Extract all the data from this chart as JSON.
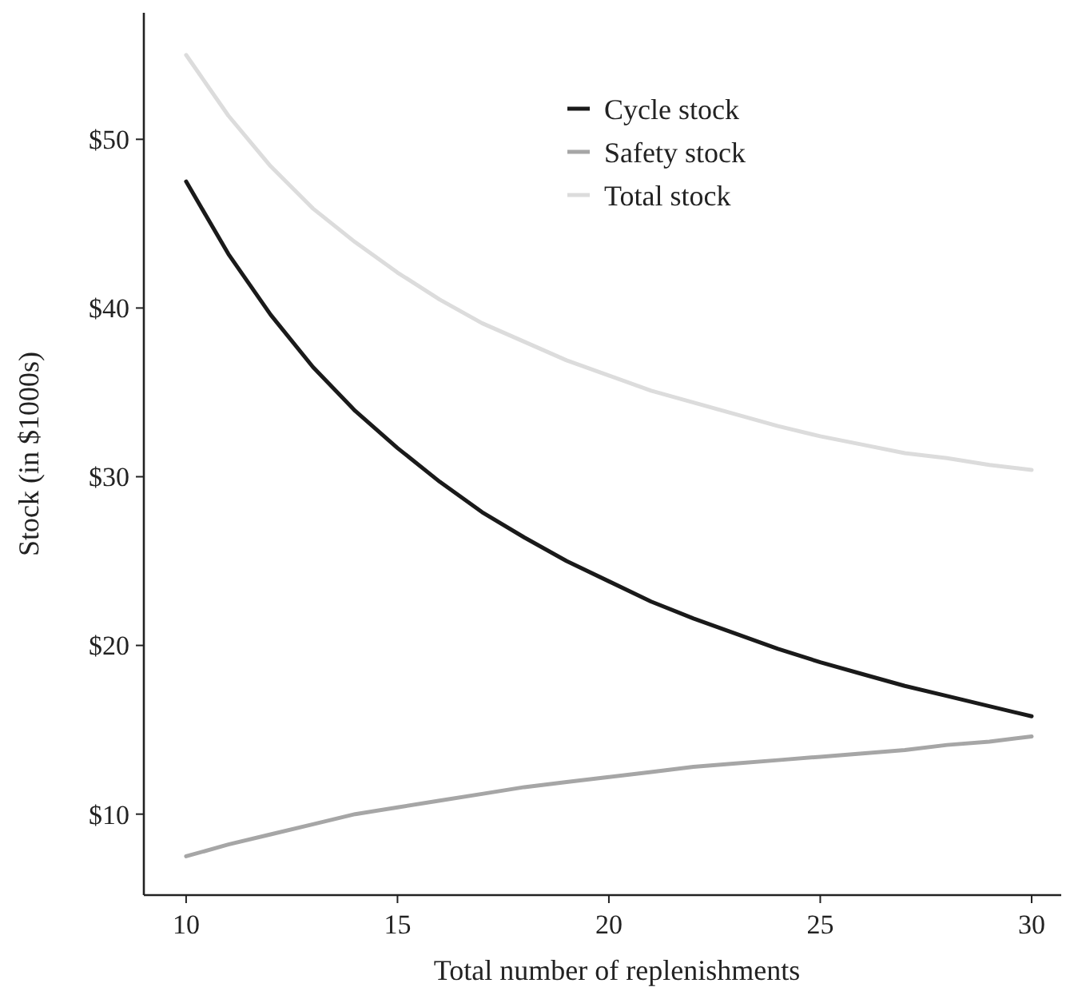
{
  "chart_data": {
    "type": "line",
    "xlabel": "Total number of replenishments",
    "ylabel": "Stock (in $1000s)",
    "x": [
      10,
      11,
      12,
      13,
      14,
      15,
      16,
      17,
      18,
      19,
      20,
      21,
      22,
      23,
      24,
      25,
      26,
      27,
      28,
      29,
      30
    ],
    "series": [
      {
        "name": "Cycle stock",
        "color": "#1a1a1a",
        "values": [
          47.5,
          43.2,
          39.6,
          36.5,
          33.9,
          31.7,
          29.7,
          27.9,
          26.4,
          25.0,
          23.8,
          22.6,
          21.6,
          20.7,
          19.8,
          19.0,
          18.3,
          17.6,
          17.0,
          16.4,
          15.8
        ]
      },
      {
        "name": "Safety stock",
        "color": "#a6a6a6",
        "values": [
          7.5,
          8.2,
          8.8,
          9.4,
          10.0,
          10.4,
          10.8,
          11.2,
          11.6,
          11.9,
          12.2,
          12.5,
          12.8,
          13.0,
          13.2,
          13.4,
          13.6,
          13.8,
          14.1,
          14.3,
          14.6
        ]
      },
      {
        "name": "Total stock",
        "color": "#dcdcdc",
        "values": [
          55.0,
          51.4,
          48.4,
          45.9,
          43.9,
          42.1,
          40.5,
          39.1,
          38.0,
          36.9,
          36.0,
          35.1,
          34.4,
          33.7,
          33.0,
          32.4,
          31.9,
          31.4,
          31.1,
          30.7,
          30.4
        ]
      }
    ],
    "xlim": [
      9,
      30.7
    ],
    "xticks": [
      10,
      15,
      20,
      25,
      30
    ],
    "ylim": [
      5.2,
      57.5
    ],
    "yticks": [
      {
        "value": 10,
        "label": "$10"
      },
      {
        "value": 20,
        "label": "$20"
      },
      {
        "value": 30,
        "label": "$30"
      },
      {
        "value": 40,
        "label": "$40"
      },
      {
        "value": 50,
        "label": "$50"
      }
    ],
    "legend": "top",
    "grid": false,
    "marker": "none",
    "line_style": "solid"
  }
}
